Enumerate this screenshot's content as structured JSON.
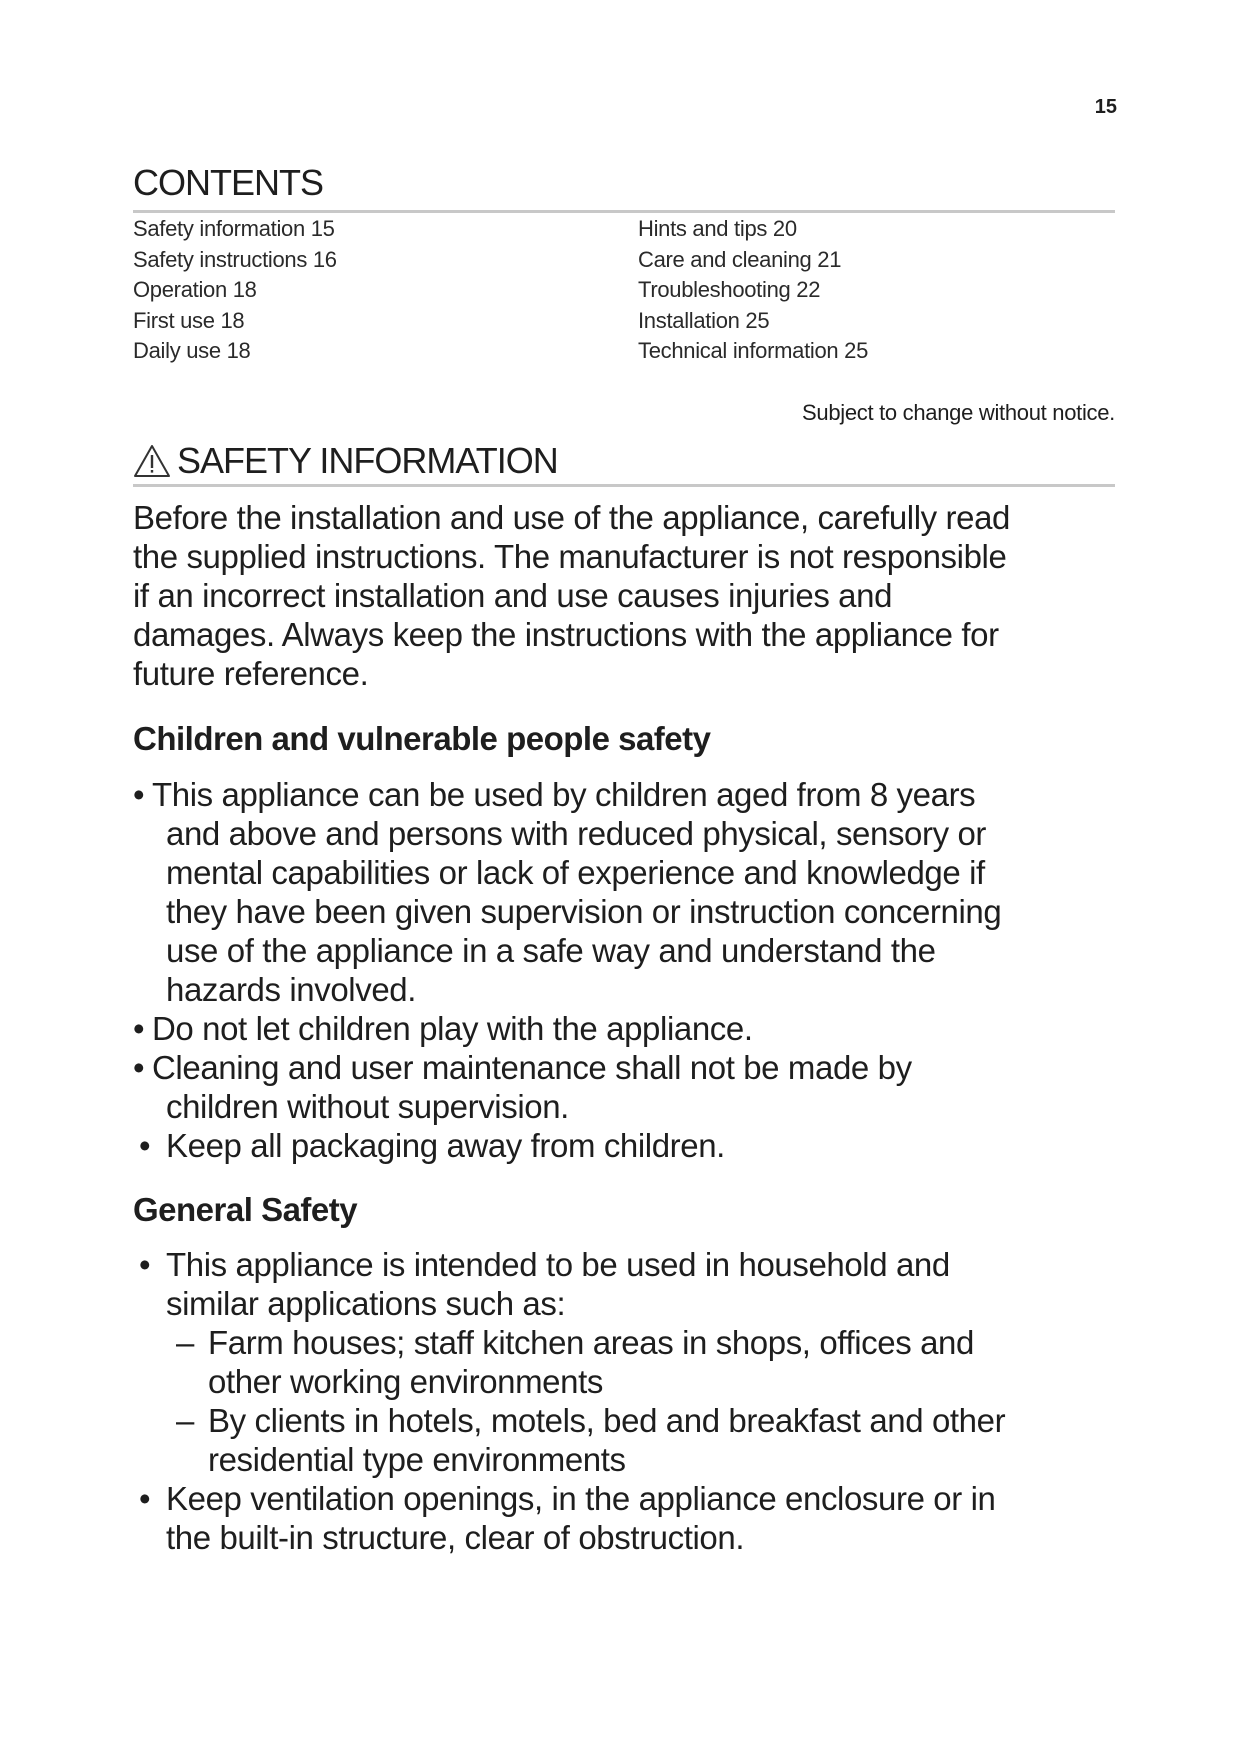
{
  "page_number": "15",
  "contents": {
    "title": "CONTENTS",
    "left": [
      "Safety information 15",
      "Safety instructions 16",
      "Operation 18",
      "First use 18",
      "Daily use 18"
    ],
    "right": [
      "Hints and tips 20",
      "Care and cleaning 21",
      "Troubleshooting 22",
      "Installation 25",
      "Technical information 25"
    ]
  },
  "notice": "Subject to change without notice.",
  "safety": {
    "icon": "warning-triangle-icon",
    "title": "SAFETY INFORMATION",
    "intro": [
      "Before the installation and use of the appliance, carefully read",
      "the supplied instructions. The manufacturer is not responsible",
      "if an incorrect installation and use causes injuries and",
      "damages. Always keep the instructions with the appliance for",
      "future reference."
    ]
  },
  "children": {
    "title": "Children and vulnerable people safety",
    "bullets": [
      [
        "This appliance can be used by children aged from 8 years",
        "and above and persons with reduced physical, sensory or",
        "mental capabilities or lack of experience and knowledge if",
        "they have been given supervision or instruction concerning",
        "use of the appliance in a safe way and understand the",
        "hazards involved."
      ],
      [
        "Do not let children play with the appliance."
      ],
      [
        "Cleaning and user maintenance shall not be made by",
        "children without supervision."
      ],
      [
        "Keep all packaging away from children."
      ]
    ]
  },
  "general": {
    "title": "General Safety",
    "bullet1": [
      "This appliance is intended to be used in household and",
      "similar applications such as:"
    ],
    "sub": [
      [
        "Farm houses; staff kitchen areas in shops, offices and",
        "other working environments"
      ],
      [
        "By clients in hotels, motels, bed and breakfast and other",
        "residential type environments"
      ]
    ],
    "bullet2": [
      "Keep ventilation openings, in the appliance enclosure or in",
      "the built-in structure, clear of obstruction."
    ]
  }
}
